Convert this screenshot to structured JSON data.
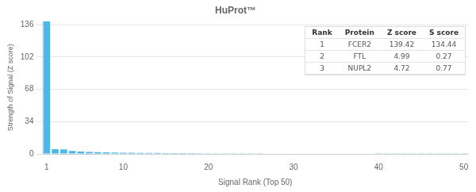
{
  "chart_data": {
    "type": "bar",
    "title": "HuProt™",
    "xlabel": "Signal Rank (Top 50)",
    "ylabel": "Strength of Signal (Z score)",
    "x": [
      1,
      2,
      3,
      4,
      5,
      6,
      7,
      8,
      9,
      10,
      11,
      12,
      13,
      14,
      15,
      16,
      17,
      18,
      19,
      20,
      21,
      22,
      23,
      24,
      25,
      26,
      27,
      28,
      29,
      30,
      31,
      32,
      33,
      34,
      35,
      36,
      37,
      38,
      39,
      40,
      41,
      42,
      43,
      44,
      45,
      46,
      47,
      48,
      49,
      50
    ],
    "values": [
      139.42,
      4.99,
      4.72,
      3.1,
      2.5,
      2.1,
      1.8,
      1.6,
      1.4,
      1.3,
      1.2,
      1.1,
      1.0,
      0.95,
      0.9,
      0.85,
      0.8,
      0.76,
      0.72,
      0.68,
      0.65,
      0.62,
      0.59,
      0.57,
      0.55,
      0.53,
      0.51,
      0.49,
      0.47,
      0.45,
      0.43,
      0.42,
      0.4,
      0.39,
      0.37,
      0.36,
      0.35,
      0.33,
      0.32,
      0.31,
      0.3,
      0.29,
      0.28,
      0.27,
      0.26,
      0.25,
      0.24,
      0.23,
      0.22,
      0.21
    ],
    "color": "#4db8e8",
    "xlim": [
      0.5,
      50.5
    ],
    "xticks": [
      1,
      10,
      20,
      30,
      40,
      50
    ],
    "ylim": [
      0,
      140
    ],
    "yticks": [
      0,
      34,
      68,
      102,
      136
    ],
    "grid": true,
    "table": {
      "header": [
        "Rank",
        "Protein",
        "Z score",
        "S score"
      ],
      "rows": [
        [
          "1",
          "FCER2",
          "139.42",
          "134.44"
        ],
        [
          "2",
          "FTL",
          "4.99",
          "0.27"
        ],
        [
          "3",
          "NUPL2",
          "4.72",
          "0.77"
        ]
      ]
    }
  }
}
